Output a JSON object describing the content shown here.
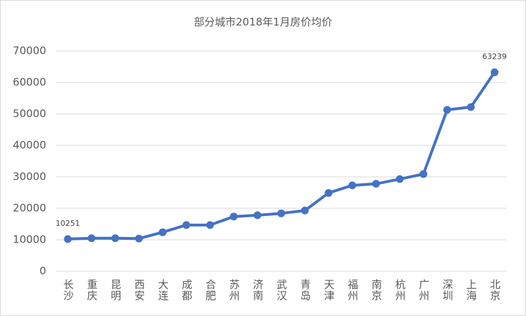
{
  "chart_data": {
    "type": "line",
    "title": "部分城市2018年1月房价均价",
    "categories": [
      "长沙",
      "重庆",
      "昆明",
      "西安",
      "大连",
      "成都",
      "合肥",
      "苏州",
      "济南",
      "武汉",
      "青岛",
      "天津",
      "福州",
      "南京",
      "杭州",
      "广州",
      "深圳",
      "上海",
      "北京"
    ],
    "series": [
      {
        "name": "房价均价",
        "color": "#4472c4",
        "values": [
          10251,
          10500,
          10500,
          10400,
          12400,
          14700,
          14700,
          17400,
          17800,
          18400,
          19300,
          24900,
          27300,
          27800,
          29300,
          30900,
          51300,
          52200,
          63239
        ],
        "value_labels": [
          "10251",
          null,
          null,
          null,
          null,
          null,
          null,
          null,
          null,
          null,
          null,
          null,
          null,
          null,
          null,
          null,
          null,
          null,
          "63239"
        ]
      }
    ],
    "ylim": [
      0,
      70000
    ],
    "yticks": [
      0,
      10000,
      20000,
      30000,
      40000,
      50000,
      60000,
      70000
    ],
    "grid": true
  }
}
